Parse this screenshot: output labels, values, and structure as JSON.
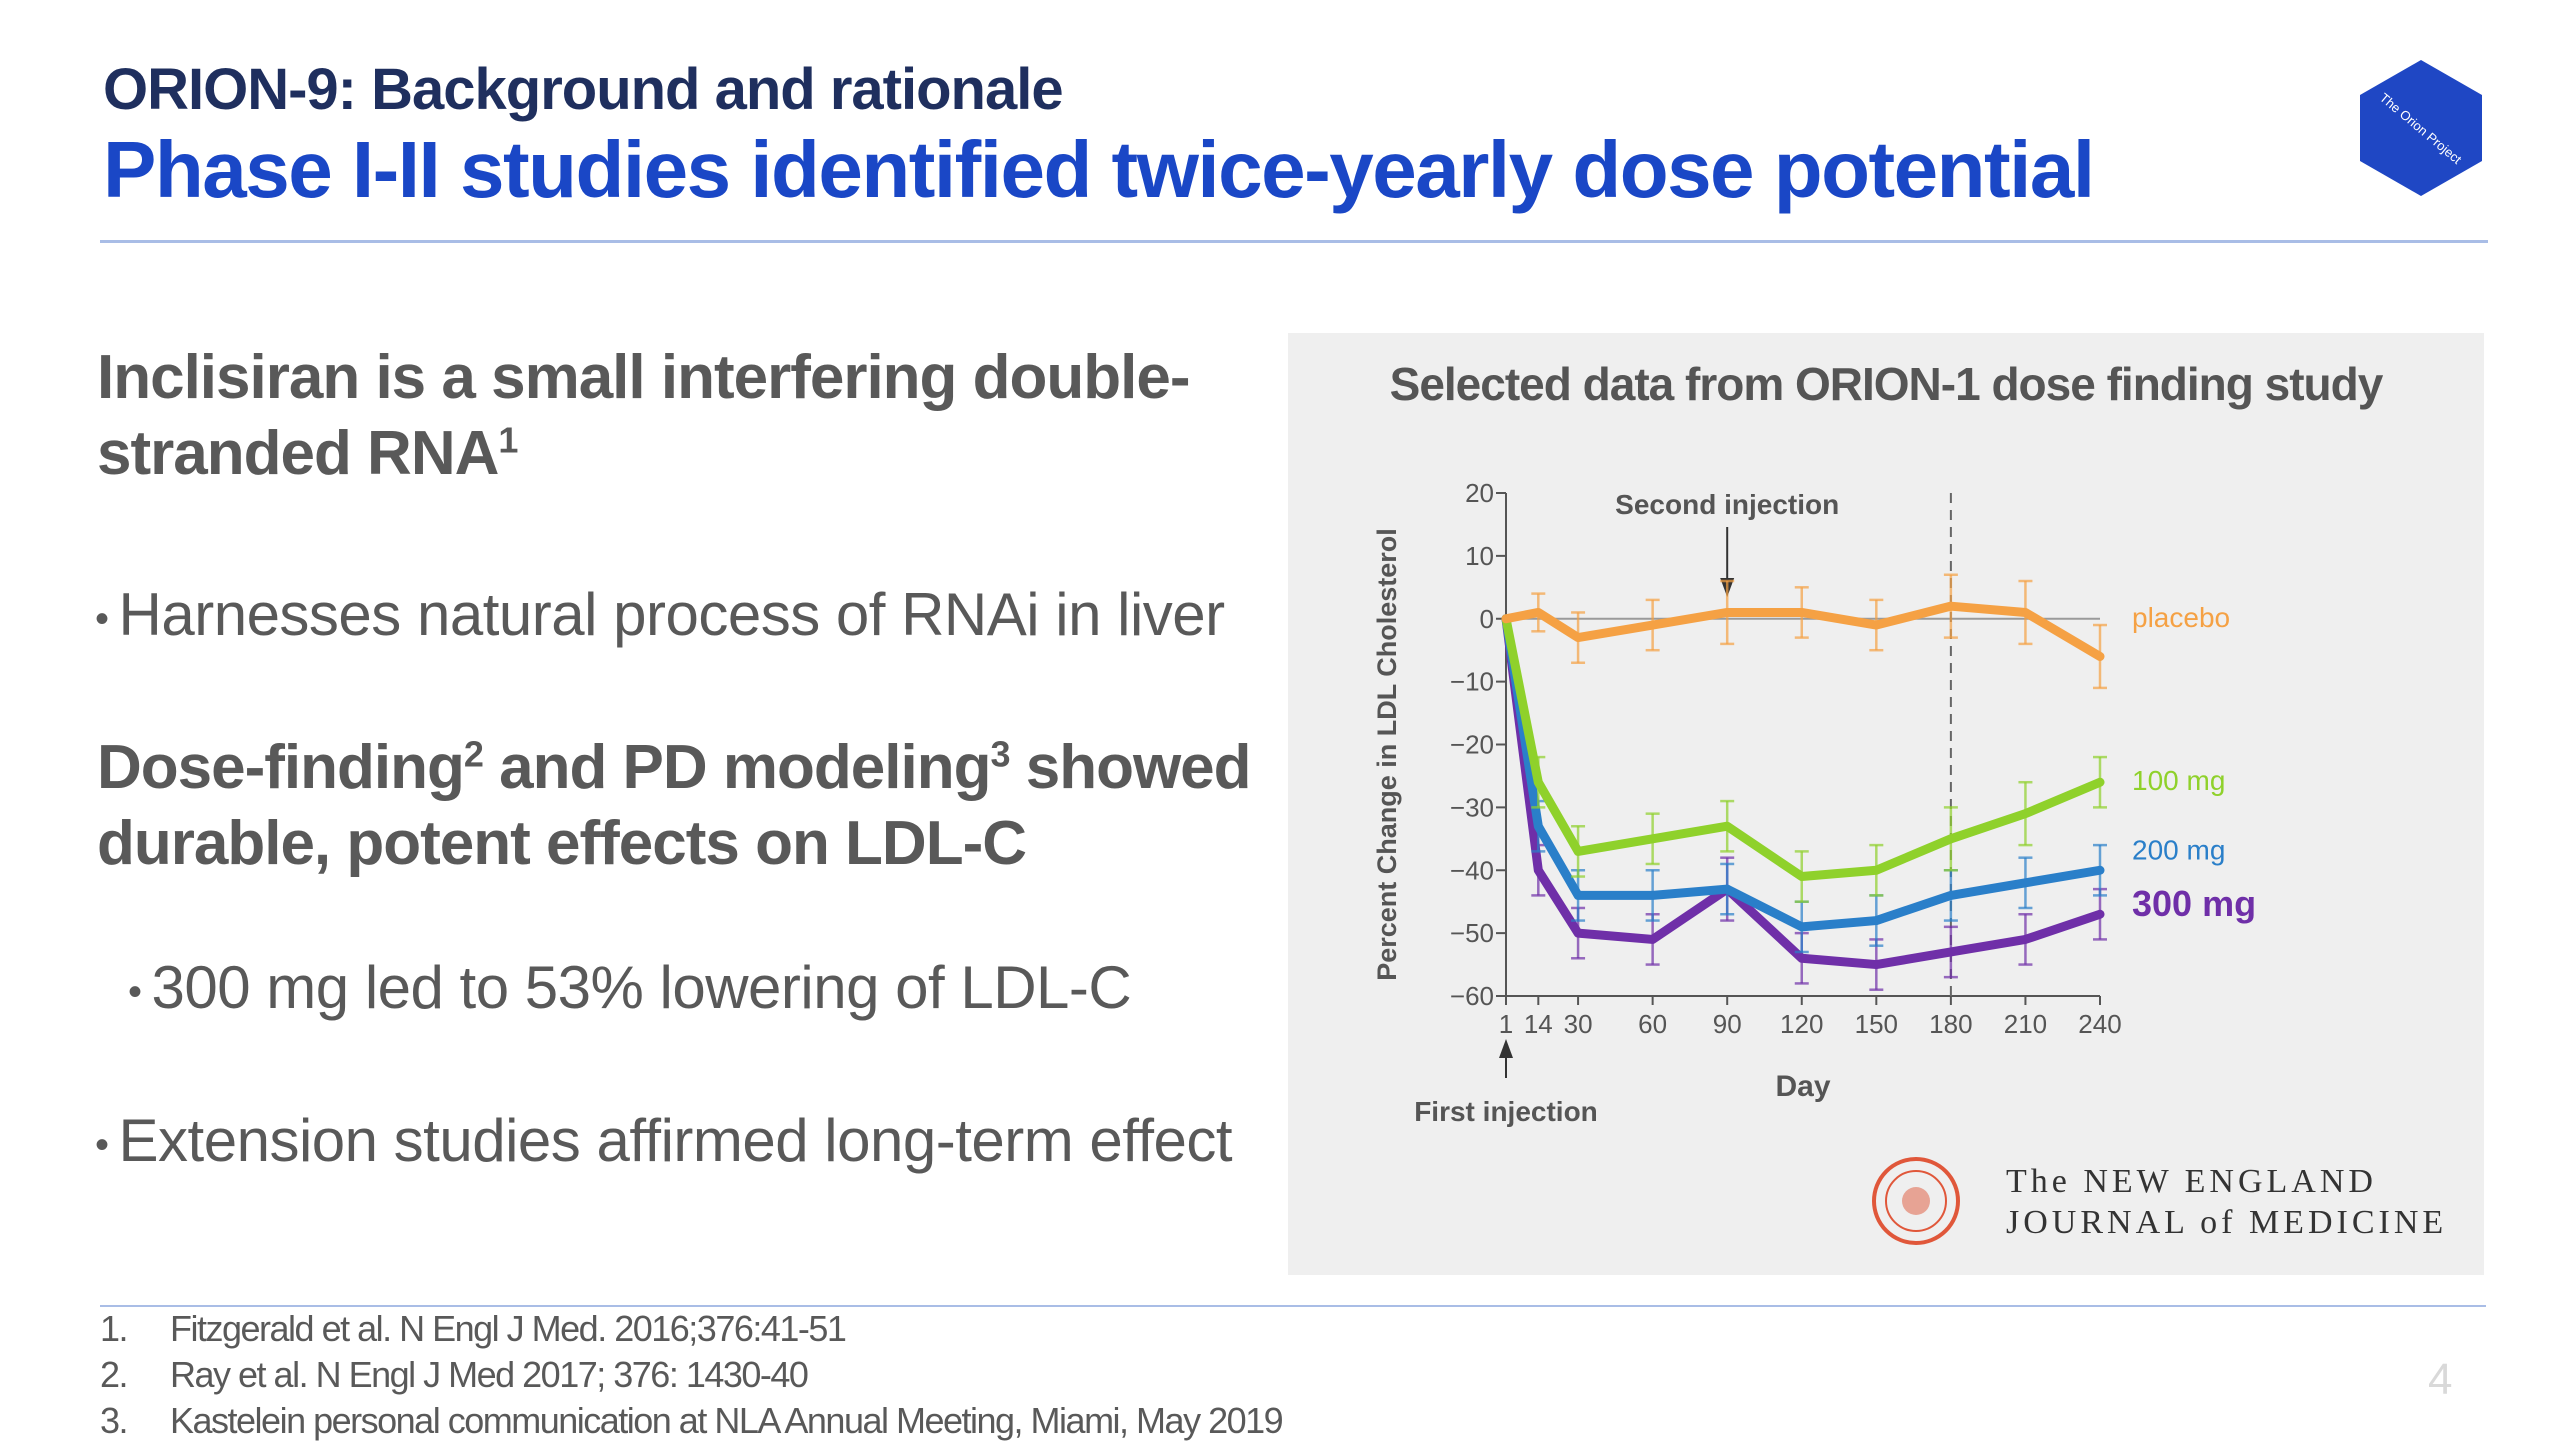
{
  "header": {
    "kicker": "ORION-9: Background and rationale",
    "headline": "Phase I-II studies identified twice-yearly dose potential",
    "logo_text": "The Orion Project"
  },
  "left": {
    "heading1_main": "Inclisiran is a small interfering double-stranded RNA",
    "heading1_sup": "1",
    "bullet1": "Harnesses natural process of RNAi in liver",
    "heading2_part1": "Dose-finding",
    "heading2_sup1": "2",
    "heading2_part2": " and PD modeling",
    "heading2_sup2": "3",
    "heading2_part3": " showed durable, potent effects on LDL-C",
    "bullet2": "300 mg led to 53% lowering of LDL-C",
    "bullet3": "Extension studies affirmed long-term effect",
    "bullet_glyph": "•"
  },
  "chart_data": {
    "type": "line",
    "title": "Selected data from ORION-1 dose finding study",
    "xlabel": "Day",
    "ylabel": "Percent Change in LDL Cholesterol",
    "x": [
      1,
      14,
      30,
      60,
      90,
      120,
      150,
      180,
      210,
      240
    ],
    "x_ticks": [
      "1",
      "14",
      "30",
      "60",
      "90",
      "120",
      "150",
      "180",
      "210",
      "240"
    ],
    "y_ticks": [
      "20",
      "10",
      "0",
      "−10",
      "−20",
      "−30",
      "−40",
      "−50",
      "−60"
    ],
    "ylim": [
      -60,
      20
    ],
    "series": [
      {
        "name": "placebo",
        "color": "#f5a144",
        "values": [
          0,
          1,
          -3,
          -1,
          1,
          1,
          -1,
          2,
          1,
          -6
        ],
        "errors": [
          0,
          3,
          4,
          4,
          5,
          4,
          4,
          5,
          5,
          5
        ]
      },
      {
        "name": "100 mg",
        "color": "#8fd12b",
        "values": [
          0,
          -26,
          -37,
          -35,
          -33,
          -41,
          -40,
          -35,
          -31,
          -26
        ],
        "errors": [
          0,
          4,
          4,
          4,
          4,
          4,
          4,
          5,
          5,
          4
        ]
      },
      {
        "name": "200 mg",
        "color": "#2a7fc9",
        "values": [
          0,
          -33,
          -44,
          -44,
          -43,
          -49,
          -48,
          -44,
          -42,
          -40
        ],
        "errors": [
          0,
          4,
          4,
          4,
          4,
          4,
          4,
          4,
          4,
          4
        ]
      },
      {
        "name": "300 mg",
        "color": "#6f2fa8",
        "values": [
          0,
          -40,
          -50,
          -51,
          -43,
          -54,
          -55,
          -53,
          -51,
          -47
        ],
        "errors": [
          0,
          4,
          4,
          4,
          5,
          4,
          4,
          4,
          4,
          4
        ]
      }
    ],
    "annotations": {
      "second_injection": "Second injection",
      "first_injection": "First injection",
      "dashed_line_day": 180
    },
    "source": {
      "journal_line1": "The NEW ENGLAND",
      "journal_line2": "JOURNAL of MEDICINE"
    }
  },
  "references": [
    {
      "num": "1.",
      "text": "Fitzgerald et al. N Engl J Med. 2016;376:41-51"
    },
    {
      "num": "2.",
      "text": "Ray et al. N Engl J Med 2017; 376: 1430-40"
    },
    {
      "num": "3.",
      "text": "Kastelein personal communication at NLA Annual Meeting, Miami, May 2019"
    }
  ],
  "page_number": "4",
  "colors": {
    "kicker": "#1f2f5e",
    "headline": "#1a47c6",
    "logo": "#1f47c4"
  }
}
